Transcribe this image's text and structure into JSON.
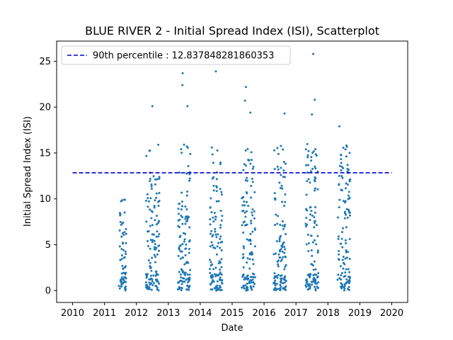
{
  "chart_data": {
    "type": "scatter",
    "title": "BLUE RIVER 2 - Initial Spread Index (ISI), Scatterplot",
    "xlabel": "Date",
    "ylabel": "Initial Spread Index (ISI)",
    "xlim": [
      2009.5,
      2020.5
    ],
    "ylim": [
      -1.3,
      27.2
    ],
    "x_ticks": [
      2010,
      2011,
      2012,
      2013,
      2014,
      2015,
      2016,
      2017,
      2018,
      2019,
      2020
    ],
    "y_ticks": [
      0,
      5,
      10,
      15,
      20,
      25
    ],
    "grid": false,
    "colors": {
      "points": "#1f77b4",
      "threshold": "#0000cc"
    },
    "threshold": {
      "label": "90th percentile : 12.837848281860353",
      "value": 12.837848281860353,
      "x_range": [
        2010,
        2020
      ],
      "style": "dashed"
    },
    "legend": {
      "placement": "top-left",
      "entries": [
        "90th percentile : 12.837848281860353"
      ]
    },
    "seasons": [
      {
        "year": 2011,
        "start": 2011.45,
        "end": 2011.68,
        "max": 9.9
      },
      {
        "year": 2012,
        "start": 2012.3,
        "end": 2012.72,
        "max": 20.1
      },
      {
        "year": 2013,
        "start": 2013.3,
        "end": 2013.7,
        "max": 23.7
      },
      {
        "year": 2014,
        "start": 2014.3,
        "end": 2014.7,
        "max": 23.9
      },
      {
        "year": 2015,
        "start": 2015.3,
        "end": 2015.72,
        "max": 22.2
      },
      {
        "year": 2016,
        "start": 2016.3,
        "end": 2016.7,
        "max": 19.3
      },
      {
        "year": 2017,
        "start": 2017.3,
        "end": 2017.7,
        "max": 25.8
      },
      {
        "year": 2018,
        "start": 2018.3,
        "end": 2018.7,
        "max": 17.9
      }
    ],
    "notable_points": [
      {
        "x": 2011.62,
        "y": 9.9
      },
      {
        "x": 2012.5,
        "y": 20.1
      },
      {
        "x": 2013.45,
        "y": 23.7
      },
      {
        "x": 2013.44,
        "y": 22.4
      },
      {
        "x": 2013.6,
        "y": 20.1
      },
      {
        "x": 2014.49,
        "y": 23.9
      },
      {
        "x": 2015.43,
        "y": 22.2
      },
      {
        "x": 2015.4,
        "y": 20.7
      },
      {
        "x": 2015.57,
        "y": 19.4
      },
      {
        "x": 2016.64,
        "y": 19.3
      },
      {
        "x": 2017.54,
        "y": 25.8
      },
      {
        "x": 2017.59,
        "y": 20.8
      },
      {
        "x": 2017.5,
        "y": 19.2
      },
      {
        "x": 2018.36,
        "y": 17.9
      }
    ]
  }
}
